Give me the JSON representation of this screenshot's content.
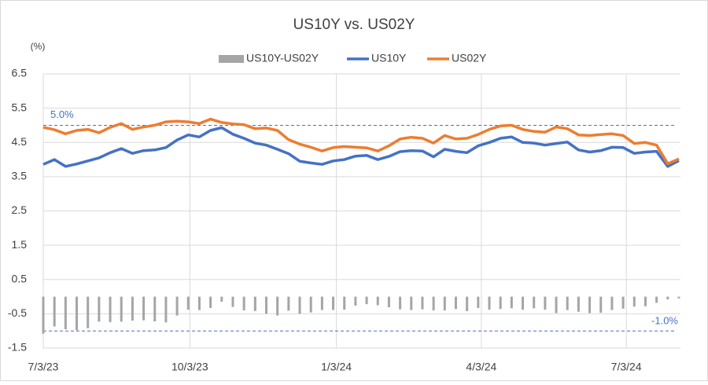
{
  "chart_data": {
    "type": "line",
    "title": "US10Y vs. US02Y",
    "y_label": "(%)",
    "x": [
      "2023-07-03",
      "2023-07-10",
      "2023-07-17",
      "2023-07-24",
      "2023-07-31",
      "2023-08-07",
      "2023-08-14",
      "2023-08-21",
      "2023-08-28",
      "2023-09-04",
      "2023-09-11",
      "2023-09-18",
      "2023-09-25",
      "2023-10-02",
      "2023-10-09",
      "2023-10-16",
      "2023-10-23",
      "2023-10-30",
      "2023-11-06",
      "2023-11-13",
      "2023-11-20",
      "2023-11-27",
      "2023-12-04",
      "2023-12-11",
      "2023-12-18",
      "2023-12-25",
      "2024-01-01",
      "2024-01-08",
      "2024-01-15",
      "2024-01-22",
      "2024-01-29",
      "2024-02-05",
      "2024-02-12",
      "2024-02-19",
      "2024-02-26",
      "2024-03-04",
      "2024-03-11",
      "2024-03-18",
      "2024-03-25",
      "2024-04-01",
      "2024-04-08",
      "2024-04-15",
      "2024-04-22",
      "2024-04-29",
      "2024-05-06",
      "2024-05-13",
      "2024-05-20",
      "2024-05-27",
      "2024-06-03",
      "2024-06-10",
      "2024-06-17",
      "2024-06-24",
      "2024-07-01",
      "2024-07-08",
      "2024-07-15",
      "2024-07-22",
      "2024-07-29",
      "2024-08-05"
    ],
    "series": [
      {
        "name": "US10Y-US02Y",
        "type": "bar",
        "color": "#a5a5a5",
        "values": [
          -1.08,
          -0.87,
          -0.95,
          -0.98,
          -0.92,
          -0.73,
          -0.74,
          -0.73,
          -0.7,
          -0.69,
          -0.72,
          -0.75,
          -0.55,
          -0.38,
          -0.39,
          -0.33,
          -0.15,
          -0.3,
          -0.4,
          -0.42,
          -0.5,
          -0.55,
          -0.41,
          -0.5,
          -0.46,
          -0.39,
          -0.39,
          -0.38,
          -0.26,
          -0.22,
          -0.25,
          -0.31,
          -0.37,
          -0.39,
          -0.37,
          -0.4,
          -0.4,
          -0.36,
          -0.42,
          -0.33,
          -0.38,
          -0.36,
          -0.34,
          -0.38,
          -0.34,
          -0.38,
          -0.48,
          -0.39,
          -0.44,
          -0.48,
          -0.47,
          -0.39,
          -0.35,
          -0.29,
          -0.28,
          -0.18,
          -0.08,
          -0.05
        ]
      },
      {
        "name": "US10Y",
        "type": "line",
        "color": "#4472c4",
        "values": [
          3.86,
          4.0,
          3.8,
          3.87,
          3.96,
          4.05,
          4.2,
          4.32,
          4.18,
          4.26,
          4.28,
          4.35,
          4.57,
          4.72,
          4.66,
          4.85,
          4.93,
          4.74,
          4.62,
          4.48,
          4.42,
          4.3,
          4.17,
          3.95,
          3.9,
          3.86,
          3.96,
          4.0,
          4.1,
          4.12,
          4.0,
          4.09,
          4.23,
          4.26,
          4.25,
          4.08,
          4.3,
          4.24,
          4.2,
          4.4,
          4.5,
          4.62,
          4.66,
          4.5,
          4.48,
          4.42,
          4.47,
          4.51,
          4.28,
          4.22,
          4.26,
          4.36,
          4.35,
          4.18,
          4.22,
          4.24,
          3.8,
          3.97
        ]
      },
      {
        "name": "US02Y",
        "type": "line",
        "color": "#ed7d31",
        "values": [
          4.94,
          4.87,
          4.75,
          4.85,
          4.88,
          4.78,
          4.94,
          5.05,
          4.88,
          4.95,
          5.0,
          5.1,
          5.12,
          5.1,
          5.05,
          5.18,
          5.08,
          5.04,
          5.02,
          4.9,
          4.92,
          4.85,
          4.58,
          4.45,
          4.36,
          4.25,
          4.35,
          4.38,
          4.36,
          4.34,
          4.25,
          4.4,
          4.6,
          4.65,
          4.62,
          4.48,
          4.7,
          4.6,
          4.62,
          4.73,
          4.88,
          4.98,
          5.0,
          4.88,
          4.82,
          4.8,
          4.95,
          4.9,
          4.72,
          4.7,
          4.73,
          4.75,
          4.7,
          4.47,
          4.5,
          4.42,
          3.88,
          4.02
        ]
      }
    ],
    "xlim": [
      "2023-07-03",
      "2024-08-06"
    ],
    "xticks": [
      {
        "value": "2023-07-03",
        "label": "7/3/23"
      },
      {
        "value": "2023-10-03",
        "label": "10/3/23"
      },
      {
        "value": "2024-01-03",
        "label": "1/3/24"
      },
      {
        "value": "2024-04-03",
        "label": "4/3/24"
      },
      {
        "value": "2024-07-03",
        "label": "7/3/24"
      }
    ],
    "ylim": [
      -1.5,
      6.5
    ],
    "yticks": [
      -1.5,
      -0.5,
      0.5,
      1.5,
      2.5,
      3.5,
      4.5,
      5.5,
      6.5
    ],
    "reference_lines": [
      {
        "value": 5.0,
        "label": "5.0%",
        "color": "#4472c4"
      },
      {
        "value": -1.0,
        "label": "-1.0%",
        "color": "#4472c4"
      }
    ],
    "grid": true,
    "legend": "top"
  }
}
